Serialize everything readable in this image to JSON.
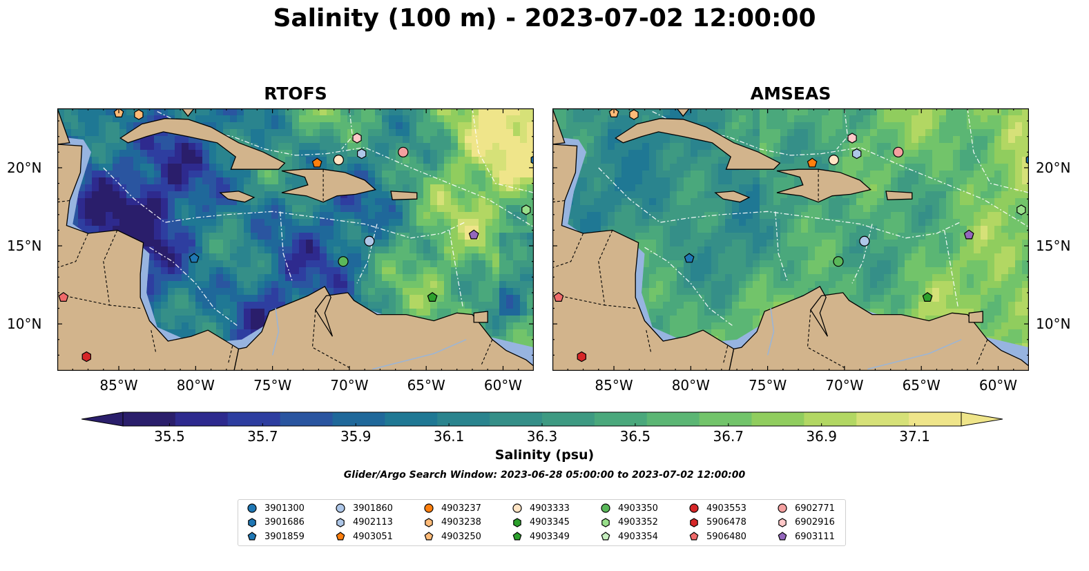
{
  "title": "Salinity (100 m) - 2023-07-02 12:00:00",
  "panels": [
    {
      "title": "RTOFS",
      "model": "rtofs"
    },
    {
      "title": "AMSEAS",
      "model": "amseas"
    }
  ],
  "map_extent": {
    "lon_min": -89,
    "lon_max": -58,
    "lat_min": 7,
    "lat_max": 23.8
  },
  "lon_ticks": [
    {
      "value": -85,
      "label": "85°W"
    },
    {
      "value": -80,
      "label": "80°W"
    },
    {
      "value": -75,
      "label": "75°W"
    },
    {
      "value": -70,
      "label": "70°W"
    },
    {
      "value": -65,
      "label": "65°W"
    },
    {
      "value": -60,
      "label": "60°W"
    }
  ],
  "lat_ticks": [
    {
      "value": 20,
      "label": "20°N"
    },
    {
      "value": 15,
      "label": "15°N"
    },
    {
      "value": 10,
      "label": "10°N"
    }
  ],
  "colorbar": {
    "label": "Salinity (psu)",
    "min": 35.4,
    "max": 37.2,
    "step": 0.1,
    "ticks": [
      "35.5",
      "35.7",
      "35.9",
      "36.1",
      "36.3",
      "36.5",
      "36.7",
      "36.9",
      "37.1"
    ],
    "colors": [
      "#2a1e6b",
      "#2e2a8e",
      "#2e3ea0",
      "#2a55a0",
      "#1f689a",
      "#1f7894",
      "#2a848e",
      "#358f88",
      "#3e9a82",
      "#4aa87c",
      "#5bb674",
      "#72c46a",
      "#90cd5e",
      "#b2d763",
      "#d6e178",
      "#efe58a"
    ],
    "colormap": "haline",
    "extend": "both"
  },
  "search_window": "Glider/Argo Search Window: 2023-06-28 05:00:00 to 2023-07-02 12:00:00",
  "colors": {
    "land": "#d2b48c",
    "shelf": "#97b4e0",
    "coast": "#000000",
    "eez": "#ffffff"
  },
  "floats": [
    {
      "id": "3901300",
      "marker": "circle",
      "color": "#1f77b4"
    },
    {
      "id": "3901686",
      "marker": "hexagon",
      "color": "#1f77b4",
      "lon": -57.9,
      "lat": 20.5
    },
    {
      "id": "3901859",
      "marker": "pentagon",
      "color": "#1f77b4",
      "lon": -80.1,
      "lat": 14.2
    },
    {
      "id": "3901860",
      "marker": "circle",
      "color": "#aec7e8",
      "lon": -68.7,
      "lat": 15.3
    },
    {
      "id": "4902113",
      "marker": "hexagon",
      "color": "#aec7e8",
      "lon": -69.2,
      "lat": 20.9
    },
    {
      "id": "4903051",
      "marker": "pentagon",
      "color": "#ff7f0e",
      "lon": -72.1,
      "lat": 20.3
    },
    {
      "id": "4903237",
      "marker": "circle",
      "color": "#ff7f0e"
    },
    {
      "id": "4903238",
      "marker": "hexagon",
      "color": "#ffbb78",
      "lon": -83.7,
      "lat": 23.4
    },
    {
      "id": "4903250",
      "marker": "pentagon",
      "color": "#ffbb78",
      "lon": -85.0,
      "lat": 23.5
    },
    {
      "id": "4903333",
      "marker": "circle",
      "color": "#ffe4c4",
      "lon": -70.7,
      "lat": 20.5
    },
    {
      "id": "4903345",
      "marker": "hexagon",
      "color": "#2ca02c"
    },
    {
      "id": "4903349",
      "marker": "pentagon",
      "color": "#2ca02c",
      "lon": -64.6,
      "lat": 11.7
    },
    {
      "id": "4903350",
      "marker": "circle",
      "color": "#5ab85a",
      "lon": -70.4,
      "lat": 14.0
    },
    {
      "id": "4903352",
      "marker": "hexagon",
      "color": "#98df8a",
      "lon": -58.5,
      "lat": 17.3
    },
    {
      "id": "4903354",
      "marker": "pentagon",
      "color": "#c7efc0"
    },
    {
      "id": "4903553",
      "marker": "circle",
      "color": "#d62728"
    },
    {
      "id": "5906478",
      "marker": "hexagon",
      "color": "#d62728",
      "lon": -87.1,
      "lat": 7.9
    },
    {
      "id": "5906480",
      "marker": "pentagon",
      "color": "#f06a6a",
      "lon": -88.6,
      "lat": 11.7
    },
    {
      "id": "6902771",
      "marker": "circle",
      "color": "#f4a0a0",
      "lon": -66.5,
      "lat": 21.0
    },
    {
      "id": "6902916",
      "marker": "hexagon",
      "color": "#ffc8c8",
      "lon": -69.5,
      "lat": 21.9
    },
    {
      "id": "6903111",
      "marker": "pentagon",
      "color": "#9467bd",
      "lon": -61.9,
      "lat": 15.7
    }
  ]
}
